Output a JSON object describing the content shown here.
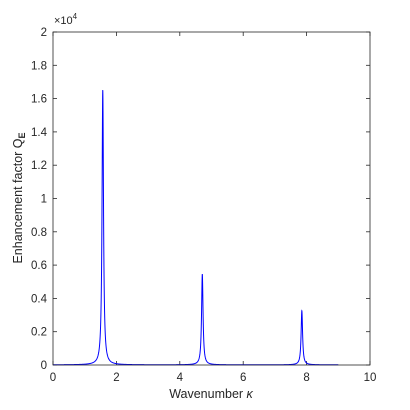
{
  "chart_data": {
    "type": "line",
    "title": "",
    "xlabel": "Wavenumber",
    "xlabel_symbol": "κ",
    "ylabel": "Enhancement factor Q",
    "ylabel_subscript": "E",
    "xlim": [
      0,
      10
    ],
    "ylim": [
      0,
      2
    ],
    "y_multiplier": "×10",
    "y_multiplier_exponent": "4",
    "xticks": [
      "0",
      "2",
      "4",
      "6",
      "8",
      "10"
    ],
    "yticks": [
      "0",
      "0.2",
      "0.4",
      "0.6",
      "0.8",
      "1",
      "1.2",
      "1.4",
      "1.6",
      "1.8",
      "2"
    ],
    "grid": false,
    "line_color": "#0000ff",
    "x_range": [
      0,
      9
    ],
    "baseline": 0.001,
    "peaks": [
      {
        "x": 1.57,
        "y": 1.65,
        "width": 0.028
      },
      {
        "x": 4.71,
        "y": 0.545,
        "width": 0.028
      },
      {
        "x": 7.85,
        "y": 0.325,
        "width": 0.028
      }
    ]
  }
}
